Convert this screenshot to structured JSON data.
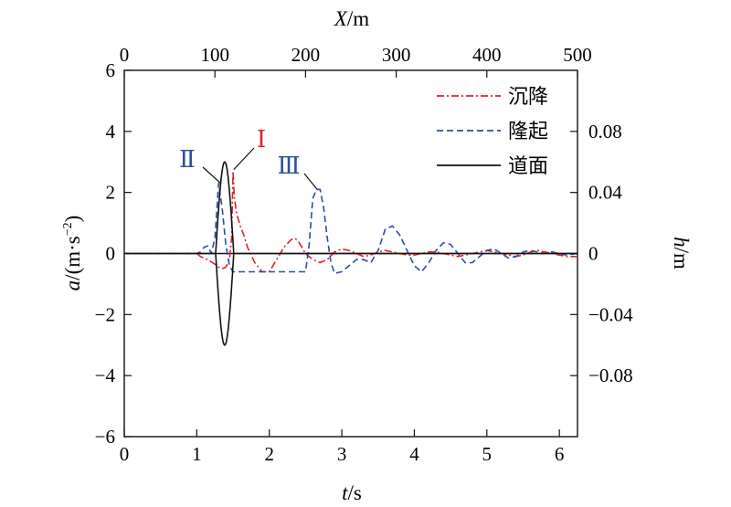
{
  "chart_data": {
    "type": "line",
    "x_axis": {
      "label_italic": "t",
      "label_unit": "/s",
      "range": [
        0,
        6.25
      ],
      "ticks": [
        "0",
        "1",
        "2",
        "3",
        "4",
        "5",
        "6"
      ]
    },
    "x2_axis": {
      "label_italic": "X",
      "label_unit": "/m",
      "range": [
        0,
        500
      ],
      "ticks": [
        "0",
        "100",
        "200",
        "300",
        "400",
        "500"
      ]
    },
    "y_axis": {
      "label_italic": "a",
      "label_unit": "/(m·s",
      "label_sup": "−2",
      "label_close": ")",
      "range": [
        -6,
        6
      ],
      "ticks": [
        "−6",
        "−4",
        "−2",
        "0",
        "2",
        "4",
        "6"
      ]
    },
    "y2_axis": {
      "label_italic": "h",
      "label_unit": "/m",
      "range": [
        -0.12,
        0.12
      ],
      "ticks": [
        "−0.08",
        "−0.04",
        "0",
        "0.04",
        "0.08"
      ]
    },
    "legend_position": "top-right",
    "series": [
      {
        "name": "沉降",
        "color": "#e0202a",
        "dash": "dash-dot",
        "axis": "left",
        "x": [
          0,
          1.0,
          1.05,
          1.15,
          1.25,
          1.3,
          1.35,
          1.4,
          1.45,
          1.48,
          1.5,
          1.52,
          1.55,
          1.6,
          1.65,
          1.7,
          1.8,
          1.9,
          2.0,
          2.1,
          2.2,
          2.3,
          2.35,
          2.4,
          2.5,
          2.6,
          2.7,
          2.8,
          2.9,
          3.0,
          3.1,
          3.2,
          3.3,
          3.4,
          3.5,
          3.6,
          3.7,
          3.8,
          3.9,
          4.0,
          4.1,
          4.2,
          4.3,
          4.4,
          4.5,
          4.6,
          4.7,
          4.8,
          4.9,
          5.0,
          5.1,
          5.2,
          5.3,
          5.4,
          5.5,
          5.6,
          5.7,
          5.8,
          5.9,
          6.0,
          6.1,
          6.25
        ],
        "y": [
          0,
          0,
          -0.1,
          -0.2,
          -0.35,
          -0.45,
          -0.5,
          -0.45,
          -0.2,
          0.5,
          2.7,
          1.8,
          1.3,
          0.9,
          0.6,
          0.2,
          -0.3,
          -0.6,
          -0.6,
          -0.2,
          0.2,
          0.45,
          0.5,
          0.4,
          0.0,
          -0.2,
          -0.3,
          -0.2,
          0.05,
          0.15,
          0.1,
          0.0,
          -0.1,
          -0.05,
          0.05,
          0.1,
          0.05,
          0.0,
          -0.05,
          -0.05,
          0.0,
          0.05,
          0.05,
          0.0,
          -0.05,
          -0.1,
          -0.05,
          0.0,
          0.05,
          0.1,
          0.05,
          0.0,
          -0.05,
          -0.1,
          -0.05,
          0.05,
          0.1,
          0.05,
          0.0,
          -0.05,
          -0.1,
          -0.1
        ]
      },
      {
        "name": "隆起",
        "color": "#2a4ea0",
        "dash": "dashed",
        "axis": "left",
        "x": [
          0,
          1.0,
          1.05,
          1.1,
          1.15,
          1.2,
          1.25,
          1.3,
          1.35,
          1.4,
          1.45,
          1.5,
          1.55,
          1.6,
          1.8,
          2.0,
          2.2,
          2.4,
          2.5,
          2.55,
          2.6,
          2.65,
          2.7,
          2.75,
          2.8,
          2.85,
          2.9,
          3.0,
          3.1,
          3.2,
          3.3,
          3.4,
          3.5,
          3.6,
          3.7,
          3.8,
          3.9,
          4.0,
          4.1,
          4.2,
          4.3,
          4.4,
          4.5,
          4.6,
          4.7,
          4.8,
          4.9,
          5.0,
          5.1,
          5.2,
          5.3,
          5.4,
          5.5,
          5.6,
          5.7,
          5.8,
          5.9,
          6.0,
          6.1,
          6.25
        ],
        "y": [
          0,
          0,
          0.05,
          0.2,
          0.25,
          0.0,
          0.5,
          2.3,
          1.5,
          0.3,
          -0.4,
          -0.6,
          -0.6,
          -0.6,
          -0.6,
          -0.6,
          -0.6,
          -0.6,
          -0.6,
          0.3,
          1.8,
          2.1,
          2.1,
          1.5,
          0.5,
          -0.3,
          -0.65,
          -0.6,
          -0.4,
          -0.2,
          -0.2,
          -0.3,
          0.1,
          0.8,
          0.9,
          0.6,
          0.1,
          -0.4,
          -0.6,
          -0.3,
          0.1,
          0.35,
          0.3,
          0.0,
          -0.3,
          -0.3,
          -0.1,
          0.1,
          0.15,
          0.0,
          -0.15,
          -0.1,
          0.05,
          0.1,
          0.05,
          0.0,
          0.05,
          0.0,
          -0.05,
          0.0
        ]
      },
      {
        "name": "道面",
        "color": "#111111",
        "dash": "solid",
        "axis": "right",
        "shape": "closed-ellipse-bump",
        "x_range": [
          1.26,
          1.51
        ],
        "h_amplitude": 0.06
      }
    ],
    "annotations": [
      {
        "text": "Ⅰ",
        "color": "#e0202a",
        "points_to": {
          "x": 1.51,
          "y": 2.75
        }
      },
      {
        "text": "Ⅱ",
        "color": "#2a4ea0",
        "points_to": {
          "x": 1.33,
          "y": 2.3
        }
      },
      {
        "text": "Ⅲ",
        "color": "#2a4ea0",
        "points_to": {
          "x": 2.66,
          "y": 2.1
        }
      }
    ]
  }
}
